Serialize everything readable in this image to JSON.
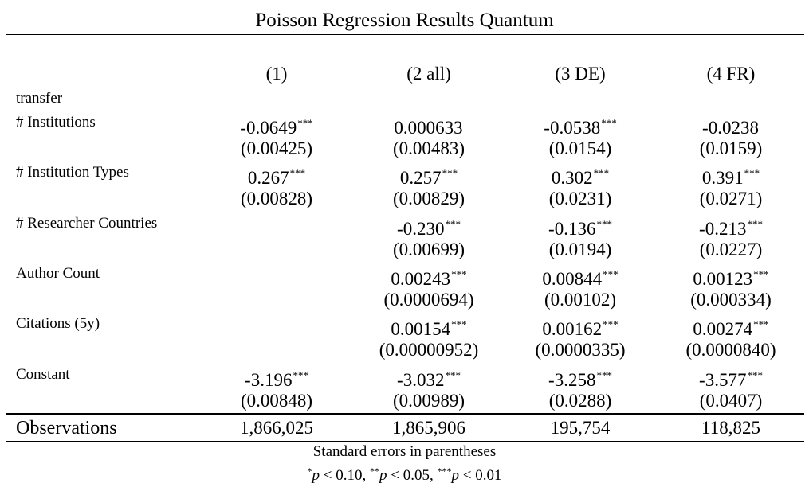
{
  "title": "Poisson Regression Results Quantum",
  "columns": [
    "(1)",
    "(2 all)",
    "(3 DE)",
    "(4 FR)"
  ],
  "group_label": "transfer",
  "rows": [
    {
      "label": "# Institutions",
      "coef": [
        "-0.0649",
        "0.000633",
        "-0.0538",
        "-0.0238"
      ],
      "stars": [
        "***",
        "",
        "***",
        ""
      ],
      "se": [
        "(0.00425)",
        "(0.00483)",
        "(0.0154)",
        "(0.0159)"
      ]
    },
    {
      "label": "# Institution Types",
      "coef": [
        "0.267",
        "0.257",
        "0.302",
        "0.391"
      ],
      "stars": [
        "***",
        "***",
        "***",
        "***"
      ],
      "se": [
        "(0.00828)",
        "(0.00829)",
        "(0.0231)",
        "(0.0271)"
      ]
    },
    {
      "label": "# Researcher Countries",
      "coef": [
        "",
        "-0.230",
        "-0.136",
        "-0.213"
      ],
      "stars": [
        "",
        "***",
        "***",
        "***"
      ],
      "se": [
        "",
        "(0.00699)",
        "(0.0194)",
        "(0.0227)"
      ]
    },
    {
      "label": "Author Count",
      "coef": [
        "",
        "0.00243",
        "0.00844",
        "0.00123"
      ],
      "stars": [
        "",
        "***",
        "***",
        "***"
      ],
      "se": [
        "",
        "(0.0000694)",
        "(0.00102)",
        "(0.000334)"
      ]
    },
    {
      "label": "Citations (5y)",
      "coef": [
        "",
        "0.00154",
        "0.00162",
        "0.00274"
      ],
      "stars": [
        "",
        "***",
        "***",
        "***"
      ],
      "se": [
        "",
        "(0.00000952)",
        "(0.0000335)",
        "(0.0000840)"
      ]
    },
    {
      "label": "Constant",
      "coef": [
        "-3.196",
        "-3.032",
        "-3.258",
        "-3.577"
      ],
      "stars": [
        "***",
        "***",
        "***",
        "***"
      ],
      "se": [
        "(0.00848)",
        "(0.00989)",
        "(0.0288)",
        "(0.0407)"
      ]
    }
  ],
  "observations": {
    "label": "Observations",
    "values": [
      "1,866,025",
      "1,865,906",
      "195,754",
      "118,825"
    ]
  },
  "notes": {
    "line1": "Standard errors in parentheses",
    "line2": {
      "star1": "*",
      "cond1": " < 0.10, ",
      "star2": "**",
      "cond2": " < 0.05, ",
      "star3": "***",
      "cond3": " < 0.01",
      "p": "p"
    }
  }
}
